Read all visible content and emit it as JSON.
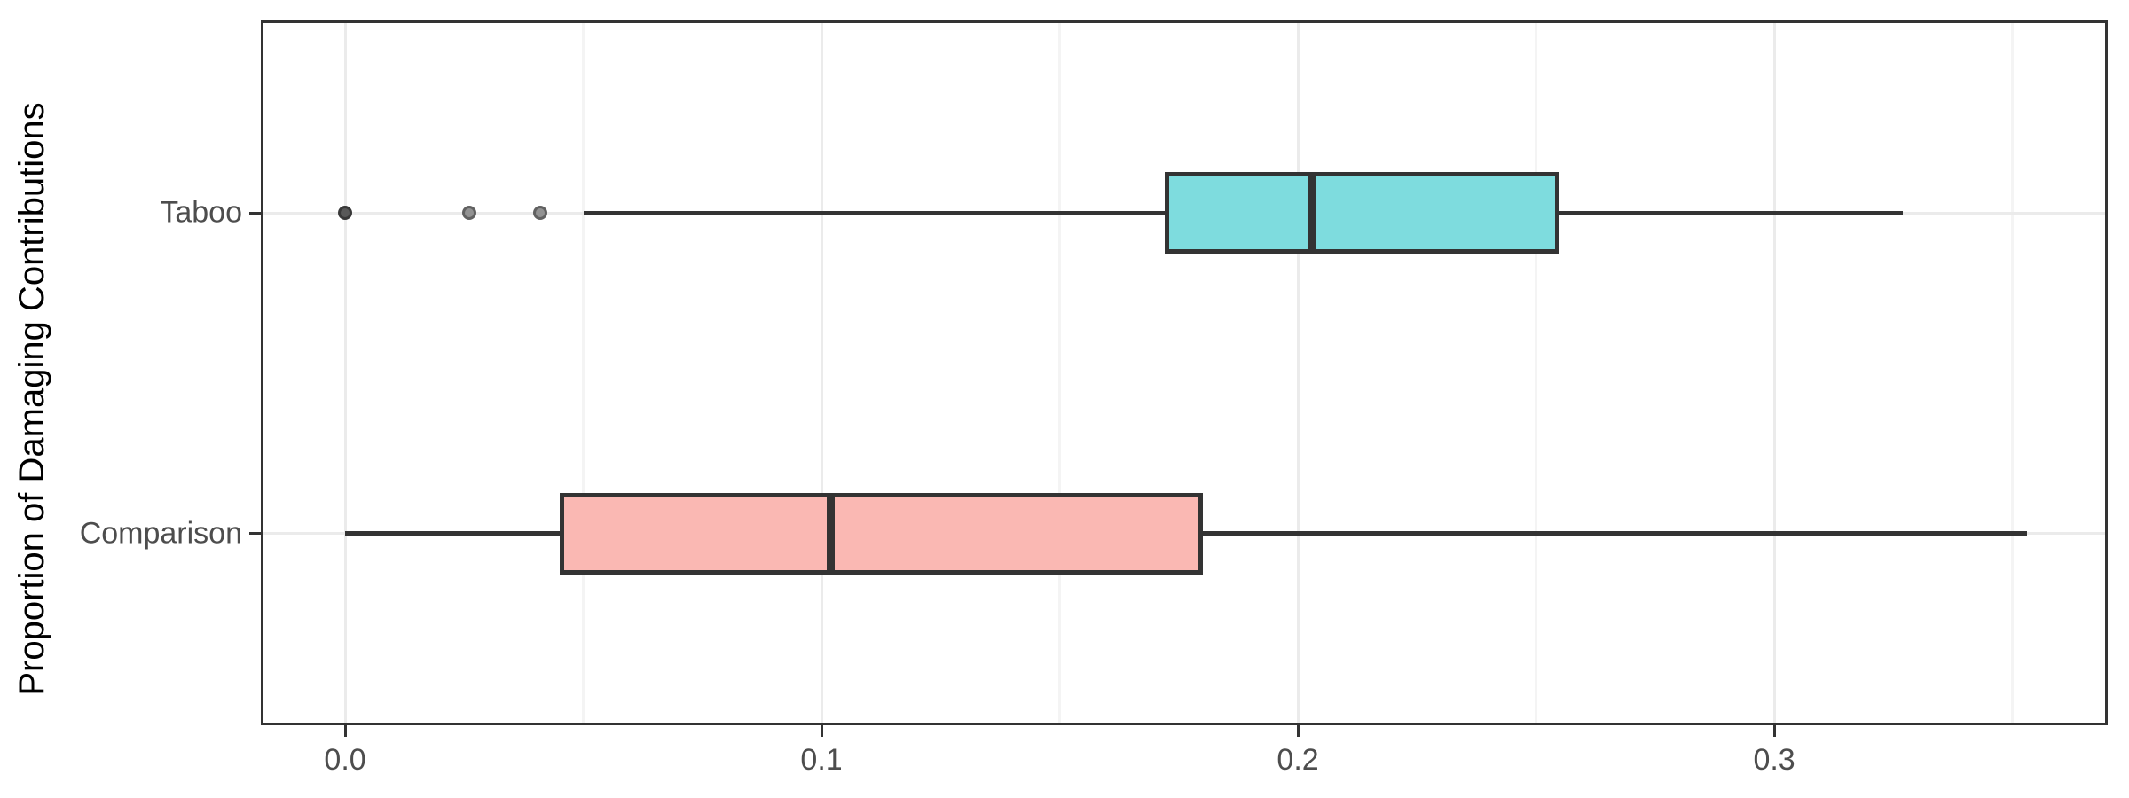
{
  "chart_data": {
    "type": "boxplot",
    "orientation": "horizontal",
    "title": "",
    "xlabel": "",
    "ylabel": "Proportion of Damaging Contributions",
    "xlim": [
      -0.0177,
      0.37
    ],
    "x_major_ticks": [
      0.0,
      0.1,
      0.2,
      0.3
    ],
    "x_tick_labels": [
      "0.0",
      "0.1",
      "0.2",
      "0.3"
    ],
    "x_minor_ticks": [
      0.05,
      0.15,
      0.25,
      0.35
    ],
    "grid": true,
    "legend": "none",
    "categories_top_to_bottom": [
      "Taboo",
      "Comparison"
    ],
    "row_center_fracs": [
      0.273,
      0.728
    ],
    "series": [
      {
        "name": "Taboo",
        "whisker_low": 0.05,
        "q1": 0.172,
        "median": 0.203,
        "q3": 0.255,
        "whisker_high": 0.327,
        "outliers": [
          0.0,
          0.026,
          0.041
        ],
        "outlier_shades": [
          "dark",
          "light",
          "light"
        ],
        "fill": "#7EDCDE"
      },
      {
        "name": "Comparison",
        "whisker_low": 0.0,
        "q1": 0.045,
        "median": 0.102,
        "q3": 0.18,
        "whisker_high": 0.353,
        "outliers": [],
        "outlier_shades": [],
        "fill": "#FAB8B3"
      }
    ],
    "colors": {
      "stroke": "#333333",
      "panel_border": "#333333",
      "grid_major": "#EBEBEB",
      "grid_minor": "#F4F4F4",
      "tick_mark": "#333333",
      "axis_text": "#4D4D4D",
      "axis_title": "#000000",
      "background": "#FFFFFF",
      "outlier_dark_fill": "#585858",
      "outlier_dark_stroke": "#383838",
      "outlier_light_fill": "#929292",
      "outlier_light_stroke": "#616161"
    }
  }
}
